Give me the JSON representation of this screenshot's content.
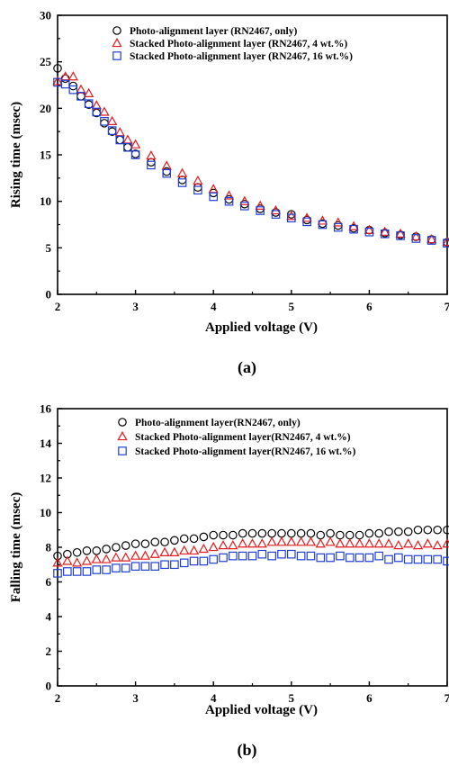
{
  "chart_data": [
    {
      "type": "scatter",
      "panel_label": "(a)",
      "xlabel": "Applied voltage (V)",
      "ylabel": "Rising time (msec)",
      "xlim": [
        2,
        7
      ],
      "ylim": [
        0,
        30
      ],
      "xticks": [
        2,
        3,
        4,
        5,
        6,
        7
      ],
      "yticks": [
        0,
        5,
        10,
        15,
        20,
        25,
        30
      ],
      "grid": false,
      "legend_position": "top-right",
      "series": [
        {
          "name": "Photo-alignment layer (RN2467, only)",
          "marker": "circle",
          "color": "#000000",
          "x": [
            2.0,
            2.1,
            2.2,
            2.3,
            2.4,
            2.5,
            2.6,
            2.7,
            2.8,
            2.9,
            3.0,
            3.2,
            3.4,
            3.6,
            3.8,
            4.0,
            4.2,
            4.4,
            4.6,
            4.8,
            5.0,
            5.2,
            5.4,
            5.6,
            5.8,
            6.0,
            6.2,
            6.4,
            6.6,
            6.8,
            7.0
          ],
          "y": [
            24.3,
            23.2,
            22.4,
            21.3,
            20.4,
            19.5,
            18.4,
            17.5,
            16.6,
            15.8,
            15.1,
            14.2,
            13.2,
            12.3,
            11.5,
            10.9,
            10.2,
            9.7,
            9.2,
            8.8,
            8.6,
            8.0,
            7.6,
            7.4,
            7.1,
            6.9,
            6.6,
            6.4,
            6.2,
            5.9,
            5.6
          ]
        },
        {
          "name": "Stacked Photo-alignment layer (RN2467, 4 wt.%)",
          "marker": "triangle",
          "color": "#e41a1c",
          "x": [
            2.0,
            2.1,
            2.2,
            2.3,
            2.4,
            2.5,
            2.6,
            2.7,
            2.8,
            2.9,
            3.0,
            3.2,
            3.4,
            3.6,
            3.8,
            4.0,
            4.2,
            4.4,
            4.6,
            4.8,
            5.0,
            5.2,
            5.4,
            5.6,
            5.8,
            6.0,
            6.2,
            6.4,
            6.6,
            6.8,
            7.0
          ],
          "y": [
            22.9,
            23.4,
            23.4,
            22.0,
            21.6,
            20.3,
            19.6,
            18.6,
            17.4,
            16.6,
            16.1,
            14.9,
            13.8,
            13.0,
            12.2,
            11.3,
            10.6,
            10.0,
            9.5,
            9.0,
            8.4,
            8.2,
            7.9,
            7.7,
            7.3,
            6.9,
            6.7,
            6.5,
            6.2,
            5.9,
            5.6
          ]
        },
        {
          "name": "Stacked Photo-alignment layer (RN2467, 16 wt.%)",
          "marker": "square",
          "color": "#1f3fd6",
          "x": [
            2.0,
            2.1,
            2.2,
            2.3,
            2.4,
            2.5,
            2.6,
            2.7,
            2.8,
            2.9,
            3.0,
            3.2,
            3.4,
            3.6,
            3.8,
            4.0,
            4.2,
            4.4,
            4.6,
            4.8,
            5.0,
            5.2,
            5.4,
            5.6,
            5.8,
            6.0,
            6.2,
            6.4,
            6.6,
            6.8,
            7.0
          ],
          "y": [
            22.8,
            22.6,
            22.0,
            21.3,
            20.5,
            19.6,
            18.6,
            17.6,
            16.6,
            15.8,
            15.0,
            13.9,
            13.0,
            12.0,
            11.2,
            10.5,
            10.0,
            9.5,
            9.0,
            8.6,
            8.2,
            7.8,
            7.5,
            7.2,
            7.0,
            6.7,
            6.5,
            6.3,
            6.0,
            5.8,
            5.5
          ]
        }
      ]
    },
    {
      "type": "scatter",
      "panel_label": "(b)",
      "xlabel": "Applied voltage (V)",
      "ylabel": "Falling time (msec)",
      "xlim": [
        2,
        7
      ],
      "ylim": [
        0,
        16
      ],
      "xticks": [
        2,
        3,
        4,
        5,
        6,
        7
      ],
      "yticks": [
        0,
        2,
        4,
        6,
        8,
        10,
        12,
        14,
        16
      ],
      "grid": false,
      "legend_position": "top-right",
      "series": [
        {
          "name": "Photo-alignment layer(RN2467, only)",
          "marker": "circle",
          "color": "#000000",
          "x": [
            2.0,
            2.125,
            2.25,
            2.375,
            2.5,
            2.625,
            2.75,
            2.875,
            3.0,
            3.125,
            3.25,
            3.375,
            3.5,
            3.625,
            3.75,
            3.875,
            4.0,
            4.125,
            4.25,
            4.375,
            4.5,
            4.625,
            4.75,
            4.875,
            5.0,
            5.125,
            5.25,
            5.375,
            5.5,
            5.625,
            5.75,
            5.875,
            6.0,
            6.125,
            6.25,
            6.375,
            6.5,
            6.625,
            6.75,
            6.875,
            7.0
          ],
          "y": [
            7.5,
            7.6,
            7.7,
            7.8,
            7.8,
            7.9,
            8.0,
            8.1,
            8.2,
            8.2,
            8.3,
            8.3,
            8.4,
            8.5,
            8.5,
            8.6,
            8.7,
            8.7,
            8.7,
            8.8,
            8.8,
            8.8,
            8.8,
            8.8,
            8.8,
            8.8,
            8.8,
            8.7,
            8.8,
            8.7,
            8.7,
            8.7,
            8.8,
            8.8,
            8.9,
            8.9,
            8.9,
            9.0,
            9.0,
            9.0,
            9.0
          ]
        },
        {
          "name": "Stacked Photo-alignment layer(RN2467, 4 wt.%)",
          "marker": "triangle",
          "color": "#e41a1c",
          "x": [
            2.0,
            2.125,
            2.25,
            2.375,
            2.5,
            2.625,
            2.75,
            2.875,
            3.0,
            3.125,
            3.25,
            3.375,
            3.5,
            3.625,
            3.75,
            3.875,
            4.0,
            4.125,
            4.25,
            4.375,
            4.5,
            4.625,
            4.75,
            4.875,
            5.0,
            5.125,
            5.25,
            5.375,
            5.5,
            5.625,
            5.75,
            5.875,
            6.0,
            6.125,
            6.25,
            6.375,
            6.5,
            6.625,
            6.75,
            6.875,
            7.0
          ],
          "y": [
            7.1,
            7.2,
            7.1,
            7.2,
            7.3,
            7.3,
            7.4,
            7.4,
            7.5,
            7.5,
            7.6,
            7.7,
            7.7,
            7.8,
            7.8,
            7.9,
            8.0,
            8.1,
            8.1,
            8.2,
            8.2,
            8.2,
            8.3,
            8.3,
            8.3,
            8.3,
            8.3,
            8.2,
            8.3,
            8.2,
            8.2,
            8.2,
            8.2,
            8.2,
            8.2,
            8.1,
            8.2,
            8.1,
            8.2,
            8.1,
            8.2
          ]
        },
        {
          "name": "Stacked Photo-alignment layer(RN2467, 16 wt.%)",
          "marker": "square",
          "color": "#1f3fd6",
          "x": [
            2.0,
            2.125,
            2.25,
            2.375,
            2.5,
            2.625,
            2.75,
            2.875,
            3.0,
            3.125,
            3.25,
            3.375,
            3.5,
            3.625,
            3.75,
            3.875,
            4.0,
            4.125,
            4.25,
            4.375,
            4.5,
            4.625,
            4.75,
            4.875,
            5.0,
            5.125,
            5.25,
            5.375,
            5.5,
            5.625,
            5.75,
            5.875,
            6.0,
            6.125,
            6.25,
            6.375,
            6.5,
            6.625,
            6.75,
            6.875,
            7.0
          ],
          "y": [
            6.5,
            6.6,
            6.6,
            6.6,
            6.7,
            6.7,
            6.8,
            6.8,
            6.9,
            6.9,
            6.9,
            7.0,
            7.0,
            7.1,
            7.2,
            7.2,
            7.3,
            7.4,
            7.5,
            7.5,
            7.5,
            7.6,
            7.5,
            7.6,
            7.6,
            7.5,
            7.5,
            7.4,
            7.4,
            7.5,
            7.4,
            7.4,
            7.4,
            7.5,
            7.3,
            7.4,
            7.3,
            7.3,
            7.3,
            7.3,
            7.2
          ]
        }
      ]
    }
  ]
}
